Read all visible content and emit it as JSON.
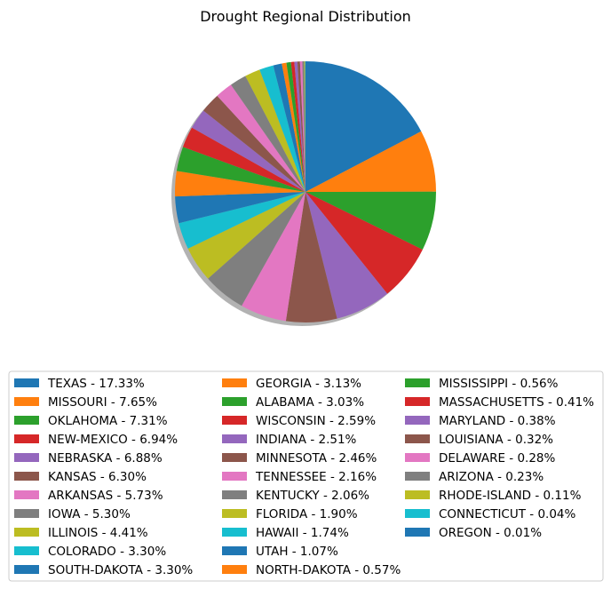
{
  "chart_data": {
    "type": "pie",
    "title": "Drought Regional Distribution",
    "start_angle_deg": 90,
    "direction": "clockwise",
    "shadow": true,
    "legend_placement": "bottom",
    "legend_columns": 3,
    "palette": [
      "#1f77b4",
      "#ff7f0e",
      "#2ca02c",
      "#d62728",
      "#9467bd",
      "#8c564b",
      "#e377c2",
      "#7f7f7f",
      "#bcbd22",
      "#17becf"
    ],
    "slices": [
      {
        "label": "TEXAS - 17.33%",
        "value": 17.33
      },
      {
        "label": "MISSOURI - 7.65%",
        "value": 7.65
      },
      {
        "label": "OKLAHOMA - 7.31%",
        "value": 7.31
      },
      {
        "label": "NEW-MEXICO - 6.94%",
        "value": 6.94
      },
      {
        "label": "NEBRASKA - 6.88%",
        "value": 6.88
      },
      {
        "label": "KANSAS - 6.30%",
        "value": 6.3
      },
      {
        "label": "ARKANSAS - 5.73%",
        "value": 5.73
      },
      {
        "label": "IOWA - 5.30%",
        "value": 5.3
      },
      {
        "label": "ILLINOIS - 4.41%",
        "value": 4.41
      },
      {
        "label": "COLORADO - 3.30%",
        "value": 3.3
      },
      {
        "label": "SOUTH-DAKOTA - 3.30%",
        "value": 3.3
      },
      {
        "label": "GEORGIA - 3.13%",
        "value": 3.13
      },
      {
        "label": "ALABAMA - 3.03%",
        "value": 3.03
      },
      {
        "label": "WISCONSIN - 2.59%",
        "value": 2.59
      },
      {
        "label": "INDIANA - 2.51%",
        "value": 2.51
      },
      {
        "label": "MINNESOTA - 2.46%",
        "value": 2.46
      },
      {
        "label": "TENNESSEE - 2.16%",
        "value": 2.16
      },
      {
        "label": "KENTUCKY - 2.06%",
        "value": 2.06
      },
      {
        "label": "FLORIDA - 1.90%",
        "value": 1.9
      },
      {
        "label": "HAWAII - 1.74%",
        "value": 1.74
      },
      {
        "label": "UTAH - 1.07%",
        "value": 1.07
      },
      {
        "label": "NORTH-DAKOTA - 0.57%",
        "value": 0.57
      },
      {
        "label": "MISSISSIPPI - 0.56%",
        "value": 0.56
      },
      {
        "label": "MASSACHUSETTS - 0.41%",
        "value": 0.41
      },
      {
        "label": "MARYLAND - 0.38%",
        "value": 0.38
      },
      {
        "label": "LOUISIANA - 0.32%",
        "value": 0.32
      },
      {
        "label": "DELAWARE - 0.28%",
        "value": 0.28
      },
      {
        "label": "ARIZONA - 0.23%",
        "value": 0.23
      },
      {
        "label": "RHODE-ISLAND - 0.11%",
        "value": 0.11
      },
      {
        "label": "CONNECTICUT - 0.04%",
        "value": 0.04
      },
      {
        "label": "OREGON - 0.01%",
        "value": 0.01
      }
    ]
  }
}
